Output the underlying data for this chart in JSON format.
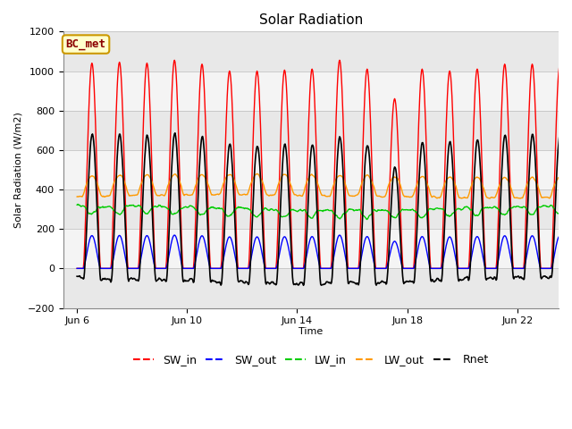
{
  "title": "Solar Radiation",
  "ylabel": "Solar Radiation (W/m2)",
  "xlabel": "Time",
  "ylim": [
    -200,
    1200
  ],
  "xlim_days": [
    5.5,
    23.5
  ],
  "background_color": "#ffffff",
  "plot_bg_color": "#ffffff",
  "grid_color": "#d8d8d8",
  "annotation_text": "BC_met",
  "annotation_bg": "#ffffcc",
  "annotation_border": "#cc9900",
  "x_ticks_labels": [
    "Jun 6",
    "Jun 10",
    "Jun 14",
    "Jun 18",
    "Jun 22"
  ],
  "x_ticks_days": [
    6,
    10,
    14,
    18,
    22
  ],
  "series": {
    "SW_in": {
      "color": "#ff0000",
      "lw": 1.0
    },
    "SW_out": {
      "color": "#0000ff",
      "lw": 1.0
    },
    "LW_in": {
      "color": "#00cc00",
      "lw": 1.0
    },
    "LW_out": {
      "color": "#ff9900",
      "lw": 1.0
    },
    "Rnet": {
      "color": "#000000",
      "lw": 1.2
    }
  },
  "n_days": 18,
  "start_day": 6,
  "stripe_colors": [
    "#e8e8e8",
    "#f4f4f4"
  ]
}
